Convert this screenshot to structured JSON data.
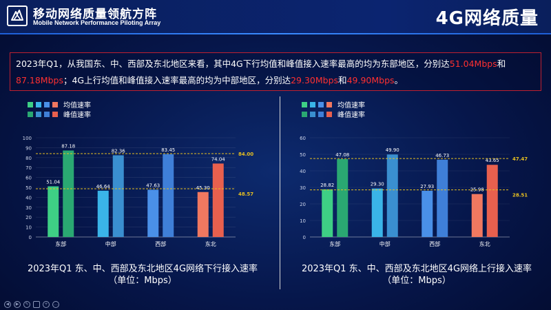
{
  "header": {
    "brand_cn": "移动网络质量领航方阵",
    "brand_en": "Mobile Network Performance Piloting Array",
    "page_title": "4G网络质量"
  },
  "summary": {
    "p1": "2023年Q1，从我国东、中、西部及东北地区来看，其中4G下行均值和峰值接入速率最高的均为东部地区，分别达",
    "v1": "51.04Mbps",
    "p2": "和",
    "v2": "87.18Mbps",
    "p3": "；4G上行均值和峰值接入速率最高的均为中部地区，分别达",
    "v3": "29.30Mbps",
    "p4": "和",
    "v4": "49.90Mbps",
    "p5": "。"
  },
  "colors": {
    "east_avg": "#3ecf85",
    "east_peak": "#2aa872",
    "central_avg": "#3ab4e8",
    "central_peak": "#3a8fd0",
    "west_avg": "#4a90e8",
    "west_peak": "#3f7fd8",
    "northeast_avg": "#f07860",
    "northeast_peak": "#e8604e",
    "ref_line": "#e8c020"
  },
  "chart_data": [
    {
      "type": "bar",
      "categories": [
        "东部",
        "中部",
        "西部",
        "东北"
      ],
      "series": [
        {
          "name": "均值速率",
          "values": [
            51.04,
            46.64,
            47.63,
            45.3
          ]
        },
        {
          "name": "峰值速率",
          "values": [
            87.18,
            82.36,
            83.45,
            74.04
          ]
        }
      ],
      "reference_lines": [
        {
          "value": 84.0,
          "label": "84.00"
        },
        {
          "value": 48.57,
          "label": "48.57"
        }
      ],
      "ylim": [
        0,
        100
      ],
      "yticks": [
        "0",
        "10",
        "20",
        "30",
        "40",
        "50",
        "60",
        "70",
        "80",
        "90",
        "100"
      ],
      "legend": "top-left",
      "caption_line1": "2023年Q1 东、中、西部及东北地区4G网络下行接入速率",
      "caption_line2": "（单位：Mbps）"
    },
    {
      "type": "bar",
      "categories": [
        "东部",
        "中部",
        "西部",
        "东北"
      ],
      "series": [
        {
          "name": "均值速率",
          "values": [
            28.82,
            29.3,
            27.93,
            25.98
          ]
        },
        {
          "name": "峰值速率",
          "values": [
            47.08,
            49.9,
            46.73,
            43.65
          ]
        }
      ],
      "reference_lines": [
        {
          "value": 47.47,
          "label": "47.47"
        },
        {
          "value": 28.51,
          "label": "28.51"
        }
      ],
      "ylim": [
        0,
        60
      ],
      "yticks": [
        "0",
        "10",
        "20",
        "30",
        "40",
        "50",
        "60"
      ],
      "legend": "top-left",
      "caption_line1": "2023年Q1 东、中、西部及东北地区4G网络上行接入速率",
      "caption_line2": "（单位：Mbps）"
    }
  ]
}
